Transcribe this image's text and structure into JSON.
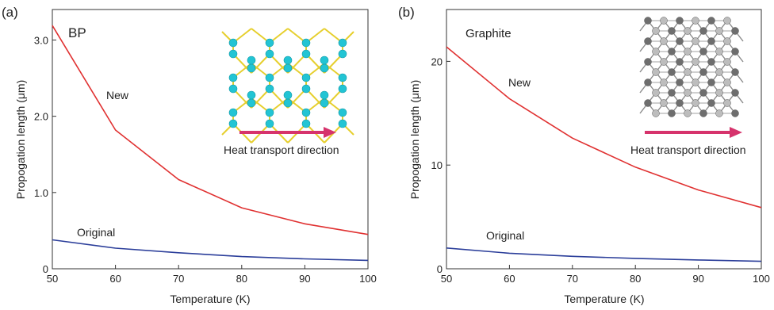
{
  "chart_data": [
    {
      "panel_label": "(a)",
      "type": "line",
      "panel_title": "BP",
      "xlabel": "Temperature (K)",
      "ylabel": "Propogation length (μm)",
      "xlim": [
        50,
        100
      ],
      "ylim": [
        0,
        3.4
      ],
      "xticks": [
        50,
        60,
        70,
        80,
        90,
        100
      ],
      "xtick_labels": [
        "50",
        "60",
        "70",
        "80",
        "90",
        "100"
      ],
      "yticks": [
        0,
        1,
        2,
        3
      ],
      "ytick_labels": [
        "0",
        "1.0",
        "2.0",
        "3.0"
      ],
      "grid": false,
      "x": [
        50,
        60,
        70,
        80,
        90,
        100
      ],
      "series": [
        {
          "name": "New",
          "color": "#e03131",
          "values": [
            3.19,
            1.82,
            1.17,
            0.8,
            0.59,
            0.45
          ]
        },
        {
          "name": "Original",
          "color": "#2b3e9a",
          "values": [
            0.38,
            0.27,
            0.21,
            0.16,
            0.13,
            0.11
          ]
        }
      ],
      "annotations": {
        "inset_caption": "Heat transport direction",
        "arrow_color": "#d6336c",
        "atom_color": "#22c4d4",
        "bond_color": "#e6cf2e"
      }
    },
    {
      "panel_label": "(b)",
      "type": "line",
      "panel_title": "Graphite",
      "xlabel": "Temperature (K)",
      "ylabel": "Propogation length (μm)",
      "xlim": [
        50,
        100
      ],
      "ylim": [
        0,
        25
      ],
      "xticks": [
        50,
        60,
        70,
        80,
        90,
        100
      ],
      "xtick_labels": [
        "50",
        "60",
        "70",
        "80",
        "90",
        "100"
      ],
      "yticks": [
        0,
        10,
        20
      ],
      "ytick_labels": [
        "0",
        "10",
        "20"
      ],
      "grid": false,
      "x": [
        50,
        60,
        70,
        80,
        90,
        100
      ],
      "series": [
        {
          "name": "New",
          "color": "#e03131",
          "values": [
            21.4,
            16.4,
            12.6,
            9.8,
            7.6,
            5.9
          ]
        },
        {
          "name": "Original",
          "color": "#2b3e9a",
          "values": [
            2.0,
            1.5,
            1.2,
            1.0,
            0.85,
            0.72
          ]
        }
      ],
      "annotations": {
        "inset_caption": "Heat transport direction",
        "arrow_color": "#d6336c",
        "atom_color_dark": "#6e6e6e",
        "atom_color_light": "#bdbdbd"
      }
    }
  ]
}
